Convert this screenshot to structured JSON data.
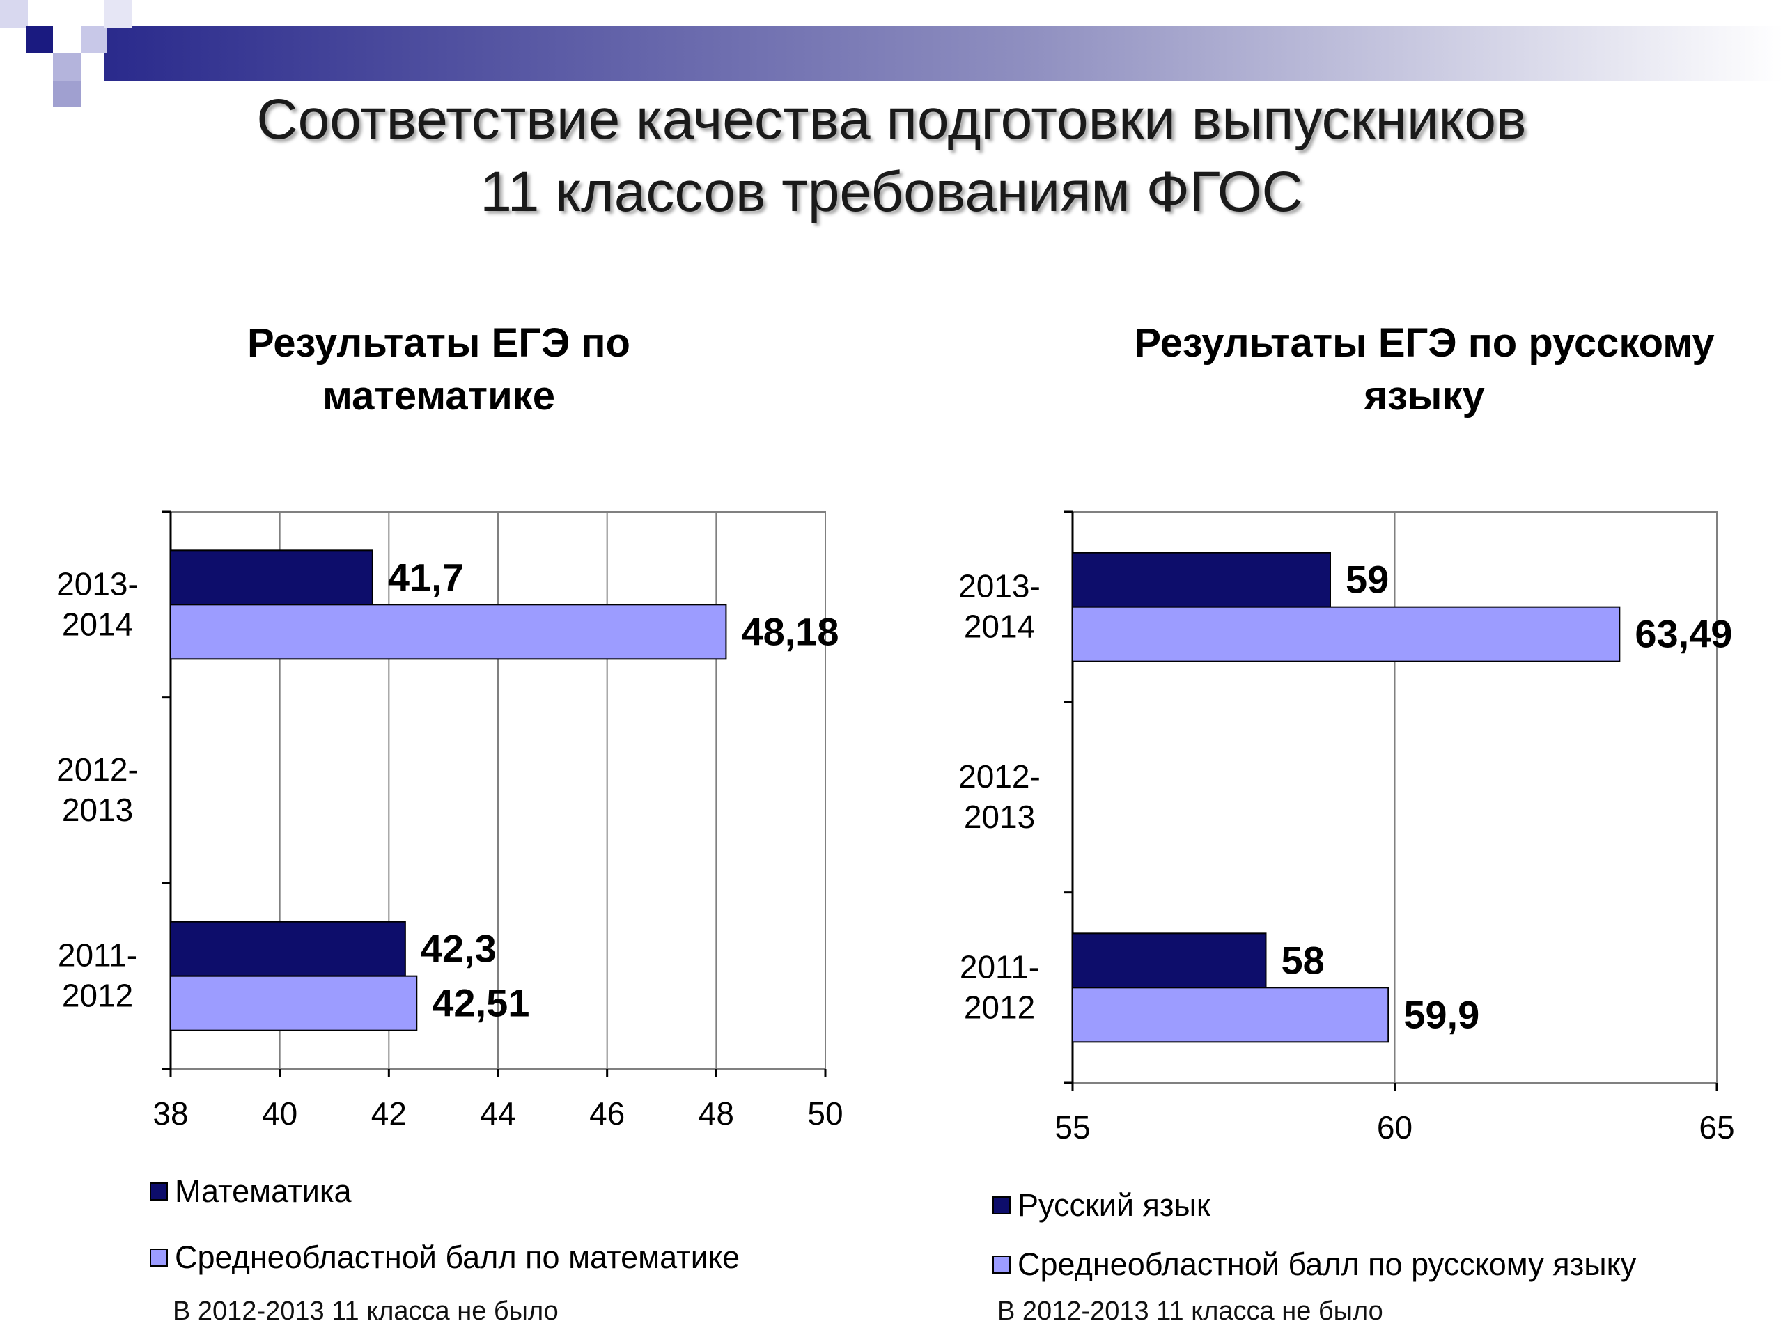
{
  "slide_title_lines": [
    "Соответствие качества подготовки выпускников",
    "11 классов требованиям ФГОС"
  ],
  "colors": {
    "dark_series": "#0d0d6b",
    "light_series": "#9c9cff",
    "banner": "#2a2a8c",
    "grid": "#808080"
  },
  "chart_data": [
    {
      "type": "bar",
      "orientation": "horizontal",
      "title_lines": [
        "Результаты ЕГЭ по",
        "математике"
      ],
      "categories": [
        "2013-2014",
        "2012-2013",
        "2011-2012"
      ],
      "category_label_lines": [
        [
          "2013-",
          "2014"
        ],
        [
          "2012-",
          "2013"
        ],
        [
          "2011-",
          "2012"
        ]
      ],
      "series": [
        {
          "name": "Математика",
          "values": [
            41.7,
            null,
            42.3
          ],
          "labels": [
            "41,7",
            "",
            "42,3"
          ]
        },
        {
          "name": "Среднеобластной балл по математике",
          "values": [
            48.18,
            null,
            42.51
          ],
          "labels": [
            "48,18",
            "",
            "42,51"
          ]
        }
      ],
      "xlim": [
        38,
        50
      ],
      "xticks": [
        38,
        40,
        42,
        44,
        46,
        48,
        50
      ],
      "xtick_labels": [
        "38",
        "40",
        "42",
        "44",
        "46",
        "48",
        "50"
      ],
      "grid": true,
      "legend_placement": "bottom",
      "footnote": "В 2012-2013 11 класса не было"
    },
    {
      "type": "bar",
      "orientation": "horizontal",
      "title_lines": [
        "Результаты ЕГЭ по русскому",
        "языку"
      ],
      "categories": [
        "2013-2014",
        "2012-2013",
        "2011-2012"
      ],
      "category_label_lines": [
        [
          "2013-",
          "2014"
        ],
        [
          "2012-",
          "2013"
        ],
        [
          "2011-",
          "2012"
        ]
      ],
      "series": [
        {
          "name": "Русский язык",
          "values": [
            59,
            null,
            58
          ],
          "labels": [
            "59",
            "",
            "58"
          ]
        },
        {
          "name": "Среднеобластной балл по русскому языку",
          "values": [
            63.49,
            null,
            59.9
          ],
          "labels": [
            "63,49",
            "",
            "59,9"
          ]
        }
      ],
      "xlim": [
        55,
        65
      ],
      "xticks": [
        55,
        60,
        65
      ],
      "xtick_labels": [
        "55",
        "60",
        "65"
      ],
      "grid": true,
      "legend_placement": "bottom",
      "footnote": "В 2012-2013 11 класса не было"
    }
  ]
}
